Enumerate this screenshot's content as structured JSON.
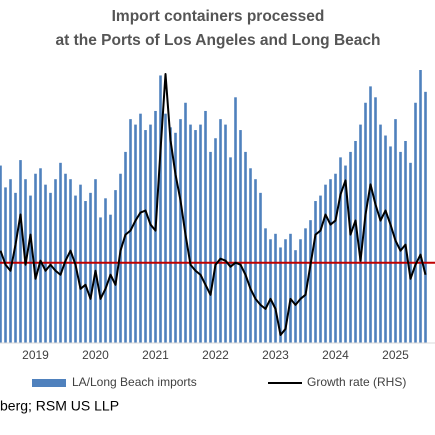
{
  "chart_data": {
    "type": "bar",
    "title": [
      "Import containers processed",
      "at the Ports of Los Angeles and Long Beach"
    ],
    "source": "berg; RSM US LLP",
    "categories": [
      null,
      null,
      null,
      null,
      null,
      null,
      null,
      "2019",
      null,
      null,
      null,
      null,
      null,
      null,
      null,
      null,
      null,
      null,
      null,
      "2020",
      null,
      null,
      null,
      null,
      null,
      null,
      null,
      null,
      null,
      null,
      null,
      "2021",
      null,
      null,
      null,
      null,
      null,
      null,
      null,
      null,
      null,
      null,
      null,
      "2022",
      null,
      null,
      null,
      null,
      null,
      null,
      null,
      null,
      null,
      null,
      null,
      "2023",
      null,
      null,
      null,
      null,
      null,
      null,
      null,
      null,
      null,
      null,
      null,
      "2024",
      null,
      null,
      null,
      null,
      null,
      null,
      null,
      null,
      null,
      null,
      null,
      "2025",
      null,
      null,
      null,
      null,
      null,
      null
    ],
    "series": [
      {
        "name": "LA/Long Beach imports",
        "type": "bar",
        "color": "#4f81bd",
        "values": [
          65,
          57,
          60,
          55,
          67,
          60,
          54,
          62,
          64,
          58,
          55,
          60,
          66,
          62,
          60,
          54,
          58,
          52,
          55,
          60,
          46,
          53,
          47,
          56,
          62,
          70,
          82,
          80,
          84,
          78,
          80,
          85,
          98,
          84,
          79,
          77,
          82,
          88,
          80,
          78,
          80,
          85,
          70,
          75,
          82,
          80,
          68,
          90,
          78,
          70,
          64,
          60,
          55,
          42,
          38,
          40,
          35,
          38,
          40,
          34,
          38,
          42,
          45,
          52,
          54,
          58,
          60,
          62,
          68,
          65,
          70,
          74,
          80,
          88,
          94,
          90,
          80,
          76,
          72,
          82,
          70,
          74,
          66,
          88,
          100,
          92
        ]
      },
      {
        "name": "Growth rate (RHS)",
        "type": "line",
        "axis": "y2",
        "color": "#000000",
        "values": [
          6,
          -1,
          -4,
          9,
          24,
          -1,
          14,
          -8,
          1,
          -4,
          -1,
          -4,
          -6,
          1,
          6,
          -1,
          -13,
          -11,
          -18,
          -4,
          -18,
          -13,
          -6,
          -11,
          6,
          14,
          16,
          21,
          25,
          26,
          19,
          16,
          56,
          94,
          61,
          44,
          31,
          14,
          -1,
          -4,
          -6,
          -11,
          -16,
          -1,
          2,
          1,
          -2,
          0,
          -1,
          -6,
          -13,
          -18,
          -21,
          -23,
          -18,
          -23,
          -36,
          -33,
          -18,
          -21,
          -18,
          -16,
          -1,
          14,
          16,
          24,
          19,
          21,
          34,
          41,
          14,
          21,
          1,
          24,
          39,
          29,
          21,
          26,
          19,
          11,
          6,
          9,
          -8,
          -1,
          4,
          -6
        ]
      }
    ],
    "ylim": [
      0,
      100
    ],
    "y2lim": [
      -40,
      96
    ],
    "reference_line": {
      "value": 0,
      "axis": "y2",
      "color": "#c00000"
    }
  }
}
